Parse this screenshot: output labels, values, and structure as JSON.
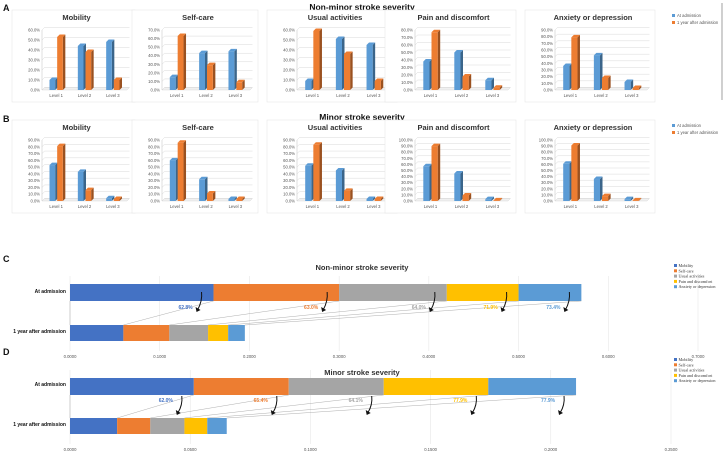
{
  "colors": {
    "blue": "#5b9bd5",
    "orange": "#ed7d31",
    "gray": "#a5a5a5",
    "yellow": "#ffc000",
    "darkblue": "#4472c4"
  },
  "panel_labels": {
    "a": "A",
    "b": "B",
    "c": "C",
    "d": "D"
  },
  "section_titles": {
    "a": "Non-minor stroke severity",
    "b": "Minor stroke severity"
  },
  "chart_data": [
    {
      "id": "a-mobility",
      "type": "bar",
      "title": "Mobility",
      "categories": [
        "Level 1",
        "Level 2",
        "Level 3"
      ],
      "series": [
        {
          "name": "At admission",
          "values": [
            10,
            44,
            48
          ]
        },
        {
          "name": "1 year after admission",
          "values": [
            53,
            38,
            10
          ]
        }
      ],
      "ylim": [
        0,
        60
      ],
      "yticks": [
        "0.0%",
        "10.0%",
        "20.0%",
        "30.0%",
        "40.0%",
        "50.0%",
        "60.0%"
      ]
    },
    {
      "id": "a-selfcare",
      "type": "bar",
      "title": "Self-care",
      "categories": [
        "Level 1",
        "Level 2",
        "Level 3"
      ],
      "series": [
        {
          "name": "At admission",
          "values": [
            15,
            43,
            45
          ]
        },
        {
          "name": "1 year after admission",
          "values": [
            63,
            29,
            9
          ]
        }
      ],
      "ylim": [
        0,
        70
      ],
      "yticks": [
        "0.0%",
        "10.0%",
        "20.0%",
        "30.0%",
        "40.0%",
        "50.0%",
        "60.0%",
        "70.0%"
      ]
    },
    {
      "id": "a-usual",
      "type": "bar",
      "title": "Usual activities",
      "categories": [
        "Level 1",
        "Level 2",
        "Level 3"
      ],
      "series": [
        {
          "name": "At admission",
          "values": [
            9,
            51,
            45
          ]
        },
        {
          "name": "1 year after admission",
          "values": [
            59,
            36,
            9
          ]
        }
      ],
      "ylim": [
        0,
        60
      ],
      "yticks": [
        "0.0%",
        "10.0%",
        "20.0%",
        "30.0%",
        "40.0%",
        "50.0%",
        "60.0%"
      ]
    },
    {
      "id": "a-pain",
      "type": "bar",
      "title": "Pain and discomfort",
      "categories": [
        "Level 1",
        "Level 2",
        "Level 3"
      ],
      "series": [
        {
          "name": "At admission",
          "values": [
            38,
            50,
            13
          ]
        },
        {
          "name": "1 year after admission",
          "values": [
            77,
            18,
            3
          ]
        }
      ],
      "ylim": [
        0,
        80
      ],
      "yticks": [
        "0.0%",
        "10.0%",
        "20.0%",
        "30.0%",
        "40.0%",
        "50.0%",
        "60.0%",
        "70.0%",
        "80.0%"
      ]
    },
    {
      "id": "a-anxiety",
      "type": "bar",
      "title": "Anxiety  or depression",
      "categories": [
        "Level 1",
        "Level 2",
        "Level 3"
      ],
      "series": [
        {
          "name": "At admission",
          "values": [
            36,
            52,
            12
          ]
        },
        {
          "name": "1 year after admission",
          "values": [
            79,
            18,
            3
          ]
        }
      ],
      "ylim": [
        0,
        90
      ],
      "yticks": [
        "0.0%",
        "10.0%",
        "20.0%",
        "30.0%",
        "40.0%",
        "50.0%",
        "60.0%",
        "70.0%",
        "80.0%",
        "90.0%"
      ]
    },
    {
      "id": "b-mobility",
      "type": "bar",
      "title": "Mobility",
      "categories": [
        "Level 1",
        "Level 2",
        "Level 3"
      ],
      "series": [
        {
          "name": "At admission",
          "values": [
            53,
            43,
            4
          ]
        },
        {
          "name": "1 year after admission",
          "values": [
            81,
            16,
            3
          ]
        }
      ],
      "ylim": [
        0,
        90
      ],
      "yticks": [
        "0.0%",
        "10.0%",
        "20.0%",
        "30.0%",
        "40.0%",
        "50.0%",
        "60.0%",
        "70.0%",
        "80.0%",
        "90.0%"
      ]
    },
    {
      "id": "b-selfcare",
      "type": "bar",
      "title": "Self-care",
      "categories": [
        "Level 1",
        "Level 2",
        "Level 3"
      ],
      "series": [
        {
          "name": "At admission",
          "values": [
            60,
            32,
            3
          ]
        },
        {
          "name": "1 year after admission",
          "values": [
            86,
            11,
            3
          ]
        }
      ],
      "ylim": [
        0,
        90
      ],
      "yticks": [
        "0.0%",
        "10.0%",
        "20.0%",
        "30.0%",
        "40.0%",
        "50.0%",
        "60.0%",
        "70.0%",
        "80.0%",
        "90.0%"
      ]
    },
    {
      "id": "b-usual",
      "type": "bar",
      "title": "Usual activities",
      "categories": [
        "Level 1",
        "Level 2",
        "Level 3"
      ],
      "series": [
        {
          "name": "At admission",
          "values": [
            52,
            45,
            3
          ]
        },
        {
          "name": "1 year after admission",
          "values": [
            83,
            15,
            3
          ]
        }
      ],
      "ylim": [
        0,
        90
      ],
      "yticks": [
        "0.0%",
        "10.0%",
        "20.0%",
        "30.0%",
        "40.0%",
        "50.0%",
        "60.0%",
        "70.0%",
        "80.0%",
        "90.0%"
      ]
    },
    {
      "id": "b-pain",
      "type": "bar",
      "title": "Pain and discomfort",
      "categories": [
        "Level 1",
        "Level 2",
        "Level 3"
      ],
      "series": [
        {
          "name": "At admission",
          "values": [
            57,
            45,
            3
          ]
        },
        {
          "name": "1 year after admission",
          "values": [
            90,
            9,
            1
          ]
        }
      ],
      "ylim": [
        0,
        100
      ],
      "yticks": [
        "0.0%",
        "10.0%",
        "20.0%",
        "30.0%",
        "40.0%",
        "50.0%",
        "60.0%",
        "70.0%",
        "80.0%",
        "90.0%",
        "100.0%"
      ]
    },
    {
      "id": "b-anxiety",
      "type": "bar",
      "title": "Anxiety  or depression",
      "categories": [
        "Level 1",
        "Level 2",
        "Level 3"
      ],
      "series": [
        {
          "name": "At admission",
          "values": [
            61,
            36,
            3
          ]
        },
        {
          "name": "1 year after admission",
          "values": [
            91,
            8,
            1
          ]
        }
      ],
      "ylim": [
        0,
        100
      ],
      "yticks": [
        "0.0%",
        "10.0%",
        "20.0%",
        "30.0%",
        "40.0%",
        "50.0%",
        "60.0%",
        "70.0%",
        "80.0%",
        "90.0%",
        "100.0%"
      ]
    },
    {
      "id": "c",
      "type": "bar",
      "orientation": "horizontal",
      "stacked": true,
      "title": "Non-minor stroke severity",
      "categories": [
        "At admission",
        "1 year after admission"
      ],
      "series": [
        {
          "name": "Mobility",
          "values": [
            0.16,
            0.0595
          ]
        },
        {
          "name": "Self-care",
          "values": [
            0.14,
            0.0512
          ]
        },
        {
          "name": "Usual activities",
          "values": [
            0.12,
            0.0432
          ]
        },
        {
          "name": "Pain and discomfort",
          "values": [
            0.08,
            0.0224
          ]
        },
        {
          "name": "Anxiety or depression",
          "values": [
            0.07,
            0.0186
          ]
        }
      ],
      "xlim": [
        0,
        0.7
      ],
      "xticks": [
        "0.0000",
        "0.1000",
        "0.2000",
        "0.3000",
        "0.4000",
        "0.5000",
        "0.6000",
        "0.7000"
      ],
      "reductions": [
        "62.8%",
        "63.0%",
        "64.0%",
        "71.9%",
        "73.4%"
      ]
    },
    {
      "id": "d",
      "type": "bar",
      "orientation": "horizontal",
      "stacked": true,
      "title": "Minor stroke severity",
      "categories": [
        "At admission",
        "1 year after admission"
      ],
      "series": [
        {
          "name": "Mobility",
          "values": [
            0.0515,
            0.0196
          ]
        },
        {
          "name": "Self-care",
          "values": [
            0.0395,
            0.0138
          ]
        },
        {
          "name": "Usual activities",
          "values": [
            0.0395,
            0.0142
          ]
        },
        {
          "name": "Pain and discomfort",
          "values": [
            0.0435,
            0.0095
          ]
        },
        {
          "name": "Anxiety or depression",
          "values": [
            0.0365,
            0.0081
          ]
        }
      ],
      "xlim": [
        0,
        0.25
      ],
      "xticks": [
        "0.0000",
        "0.0500",
        "0.1000",
        "0.1500",
        "0.2000",
        "0.2500"
      ],
      "reductions": [
        "62.0%",
        "65.4%",
        "64.1%",
        "77.9%",
        "77.9%"
      ]
    }
  ]
}
